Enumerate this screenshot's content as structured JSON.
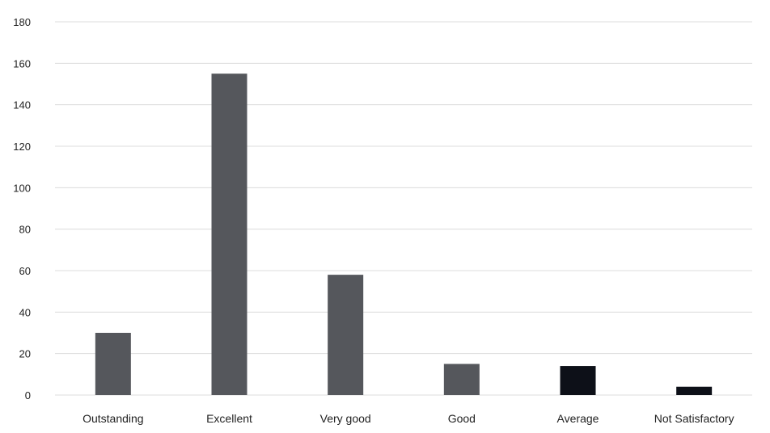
{
  "chart_data": {
    "type": "bar",
    "title": "",
    "xlabel": "",
    "ylabel": "",
    "categories": [
      "Outstanding",
      "Excellent",
      "Very good",
      "Good",
      "Average",
      "Not  Satisfactory"
    ],
    "values": [
      30,
      155,
      58,
      15,
      14,
      4
    ],
    "bar_colors": [
      "#55575c",
      "#55575c",
      "#55575c",
      "#55575c",
      "#0d1018",
      "#0d1018"
    ],
    "ylim": [
      0,
      180
    ],
    "yticks": [
      0,
      20,
      40,
      60,
      80,
      100,
      120,
      140,
      160,
      180
    ],
    "grid": true,
    "legend": "none"
  }
}
